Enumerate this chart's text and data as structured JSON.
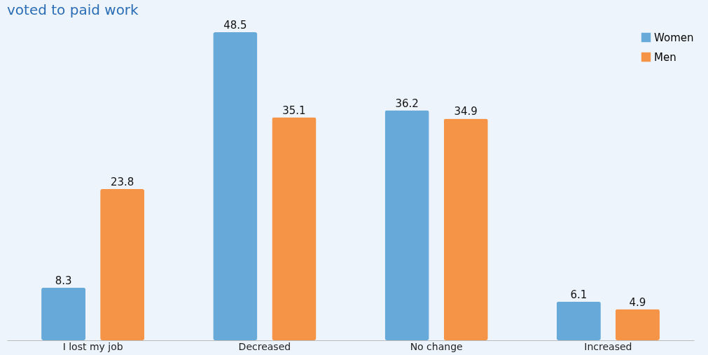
{
  "chart_data": {
    "type": "bar",
    "title": "voted to paid work",
    "categories": [
      "I lost my job",
      "Decreased",
      "No change",
      "Increased"
    ],
    "series": [
      {
        "name": "Women",
        "color": "#67a9d9",
        "values": [
          8.3,
          48.5,
          36.2,
          6.1
        ]
      },
      {
        "name": "Men",
        "color": "#f59346",
        "values": [
          23.8,
          35.1,
          34.9,
          4.9
        ]
      }
    ],
    "data_labels": true,
    "legend": "top right",
    "grid": false
  }
}
